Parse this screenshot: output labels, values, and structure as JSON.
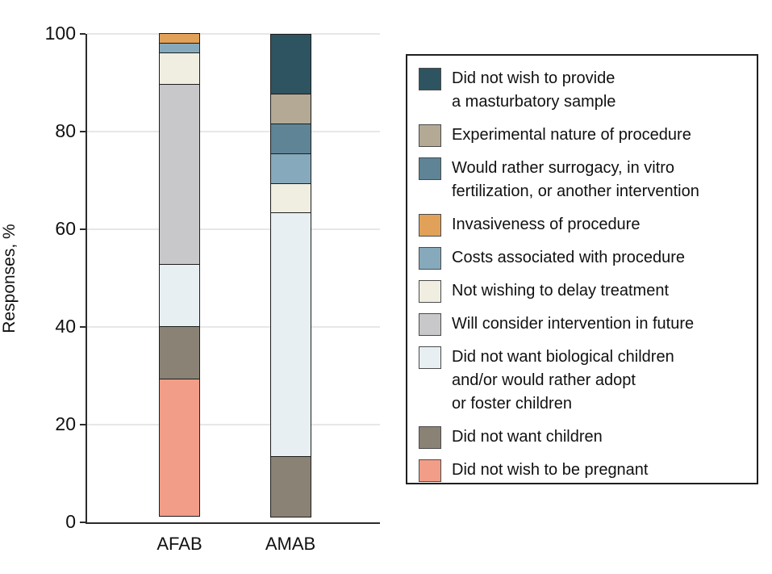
{
  "y_axis": {
    "title": "Responses, %",
    "tick_labels": [
      "0",
      "20",
      "40",
      "60",
      "80",
      "100"
    ]
  },
  "x_axis": {
    "categories": [
      "AFAB",
      "AMAB"
    ]
  },
  "colors": {
    "masturbatory": "#2e5461",
    "experimental": "#b3a995",
    "surrogacy": "#5e8496",
    "invasiveness": "#e1a158",
    "costs": "#86aabb",
    "delay": "#efeee1",
    "future": "#c8c8ca",
    "biological": "#e8eff2",
    "children": "#8a8275",
    "pregnant": "#f29d88",
    "gridline": "#e7e7e7",
    "axis": "#2b2b2b",
    "segment_border": "#1d1d1d"
  },
  "legend": {
    "items": [
      {
        "name": "masturbatory",
        "color": "#2e5461",
        "label": "Did not wish to provide\na masturbatory sample"
      },
      {
        "name": "experimental",
        "color": "#b3a995",
        "label": "Experimental nature of procedure"
      },
      {
        "name": "surrogacy",
        "color": "#5e8496",
        "label": "Would rather surrogacy, in vitro\nfertilization, or another intervention"
      },
      {
        "name": "invasiveness",
        "color": "#e1a158",
        "label": "Invasiveness of procedure"
      },
      {
        "name": "costs",
        "color": "#86aabb",
        "label": "Costs associated with procedure"
      },
      {
        "name": "delay",
        "color": "#efeee1",
        "label": "Not wishing to delay treatment"
      },
      {
        "name": "future",
        "color": "#c8c8ca",
        "label": "Will consider intervention in future"
      },
      {
        "name": "biological",
        "color": "#e8eff2",
        "label": "Did not want biological children\nand/or would rather adopt\nor foster children"
      },
      {
        "name": "children",
        "color": "#8a8275",
        "label": "Did not want children"
      },
      {
        "name": "pregnant",
        "color": "#f29d88",
        "label": "Did not wish to be pregnant"
      }
    ]
  },
  "chart_data": {
    "type": "bar",
    "subtype": "stacked-percent",
    "title": "",
    "xlabel": "",
    "ylabel": "Responses, %",
    "categories": [
      "AFAB",
      "AMAB"
    ],
    "ylim": [
      0,
      100
    ],
    "yticks": [
      0,
      20,
      40,
      60,
      80,
      100
    ],
    "grid": true,
    "legend_position": "right",
    "series": [
      {
        "name": "Did not wish to be pregnant",
        "key": "pregnant",
        "color": "#f29d88",
        "values": [
          28.3,
          0
        ]
      },
      {
        "name": "Did not want children",
        "key": "children",
        "color": "#8a8275",
        "values": [
          10.9,
          12.5
        ]
      },
      {
        "name": "Did not want biological children and/or would rather adopt or foster children",
        "key": "biological",
        "color": "#e8eff2",
        "values": [
          13.0,
          50.0
        ]
      },
      {
        "name": "Will consider intervention in future",
        "key": "future",
        "color": "#c8c8ca",
        "values": [
          37.0,
          0
        ]
      },
      {
        "name": "Not wishing to delay treatment",
        "key": "delay",
        "color": "#efeee1",
        "values": [
          6.5,
          6.25
        ]
      },
      {
        "name": "Costs associated with procedure",
        "key": "costs",
        "color": "#86aabb",
        "values": [
          2.2,
          6.25
        ]
      },
      {
        "name": "Invasiveness of procedure",
        "key": "invasiveness",
        "color": "#e1a158",
        "values": [
          2.2,
          0
        ]
      },
      {
        "name": "Would rather surrogacy, in vitro fertilization, or another intervention",
        "key": "surrogacy",
        "color": "#5e8496",
        "values": [
          0,
          6.25
        ]
      },
      {
        "name": "Experimental nature of procedure",
        "key": "experimental",
        "color": "#b3a995",
        "values": [
          0,
          6.25
        ]
      },
      {
        "name": "Did not wish to provide a masturbatory sample",
        "key": "masturbatory",
        "color": "#2e5461",
        "values": [
          0,
          12.5
        ]
      }
    ]
  }
}
